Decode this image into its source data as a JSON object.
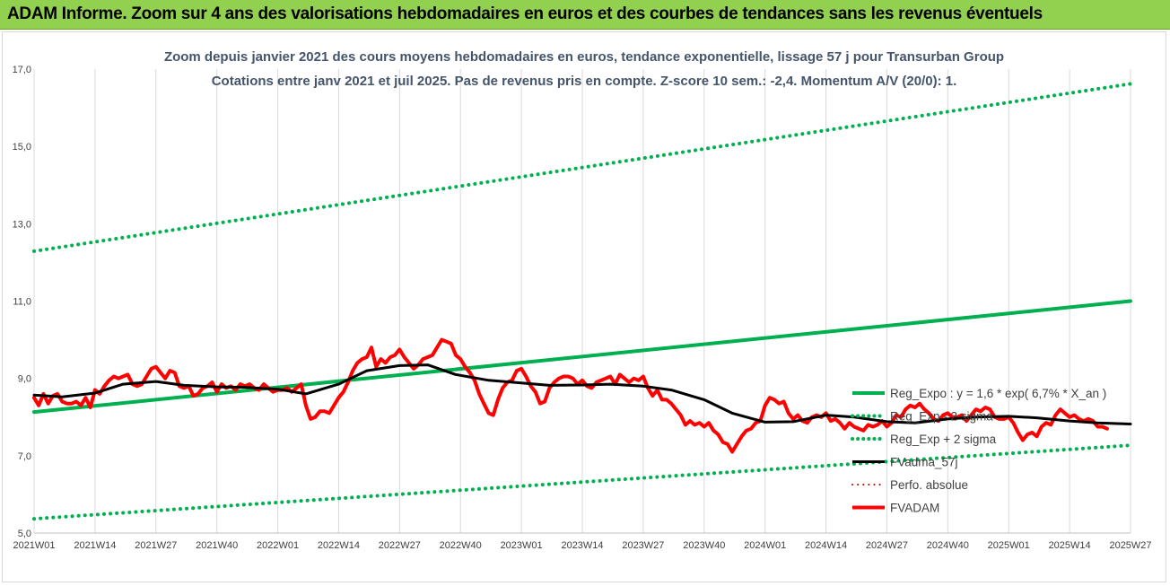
{
  "banner": {
    "title": "ADAM Informe. Zoom sur 4 ans des valorisations hebdomadaires en euros et des courbes de tendances sans les revenus éventuels"
  },
  "colors": {
    "banner_bg": "#92d050",
    "trend": "#00b050",
    "smooth": "#000000",
    "price": "#ff0000",
    "perfo": "#c00000"
  },
  "chart_data": {
    "type": "line",
    "title": "Zoom depuis janvier 2021 des cours moyens hebdomadaires en euros, tendance exponentielle, lissage 57 j pour Transurban Group",
    "subtitle": "Cotations entre janv 2021 et juil 2025. Pas de revenus pris en compte. Z-score 10 sem.: -2,4. Momentum A/V (20/0): 1.",
    "xlabel": "",
    "ylabel": "",
    "ylim": [
      5,
      17
    ],
    "yticks": [
      "5,0",
      "7,0",
      "9,0",
      "11,0",
      "13,0",
      "15,0",
      "17,0"
    ],
    "xticks": [
      "2021W01",
      "2021W14",
      "2021W27",
      "2021W40",
      "2022W01",
      "2022W14",
      "2022W27",
      "2022W40",
      "2023W01",
      "2023W14",
      "2023W27",
      "2023W40",
      "2024W01",
      "2024W14",
      "2024W27",
      "2024W40",
      "2025W01",
      "2025W14",
      "2025W27"
    ],
    "xrange_weeks": [
      0,
      234
    ],
    "grid": "vertical",
    "legend_position": "right",
    "series": [
      {
        "name": "Reg_Expo : y = 1,6 * exp( 6,7% *  X_an )",
        "style": "solid",
        "color": "#00b050",
        "width": 4,
        "points": [
          [
            0,
            8.13
          ],
          [
            234,
            11.0
          ]
        ]
      },
      {
        "name": "Reg_Exp - 2 sigma",
        "style": "dotted",
        "color": "#00b050",
        "width": 4,
        "points": [
          [
            0,
            5.37
          ],
          [
            234,
            7.27
          ]
        ]
      },
      {
        "name": "Reg_Exp + 2 sigma",
        "style": "dotted",
        "color": "#00b050",
        "width": 4,
        "points": [
          [
            0,
            12.29
          ],
          [
            234,
            16.62
          ]
        ]
      },
      {
        "name": "FVadma_57j",
        "style": "solid",
        "color": "#000000",
        "width": 3,
        "points": [
          [
            0,
            8.57
          ],
          [
            6,
            8.52
          ],
          [
            13,
            8.62
          ],
          [
            19,
            8.85
          ],
          [
            26,
            8.92
          ],
          [
            32,
            8.82
          ],
          [
            39,
            8.78
          ],
          [
            45,
            8.77
          ],
          [
            52,
            8.72
          ],
          [
            58,
            8.6
          ],
          [
            65,
            8.85
          ],
          [
            71,
            9.2
          ],
          [
            78,
            9.33
          ],
          [
            84,
            9.35
          ],
          [
            90,
            9.1
          ],
          [
            97,
            8.95
          ],
          [
            104,
            8.88
          ],
          [
            110,
            8.82
          ],
          [
            117,
            8.83
          ],
          [
            123,
            8.85
          ],
          [
            130,
            8.8
          ],
          [
            136,
            8.7
          ],
          [
            143,
            8.45
          ],
          [
            149,
            8.1
          ],
          [
            156,
            7.87
          ],
          [
            162,
            7.88
          ],
          [
            169,
            8.05
          ],
          [
            175,
            8.0
          ],
          [
            182,
            7.88
          ],
          [
            188,
            7.85
          ],
          [
            195,
            7.95
          ],
          [
            201,
            8.0
          ],
          [
            208,
            8.02
          ],
          [
            214,
            7.98
          ],
          [
            221,
            7.9
          ],
          [
            227,
            7.85
          ],
          [
            234,
            7.82
          ]
        ]
      },
      {
        "name": "Perfo. absolue",
        "style": "dotted",
        "color": "#c00000",
        "width": 2,
        "points": []
      },
      {
        "name": "FVADAM",
        "style": "solid",
        "color": "#ff0000",
        "width": 4,
        "points": [
          [
            0,
            8.5
          ],
          [
            1,
            8.3
          ],
          [
            2,
            8.6
          ],
          [
            3,
            8.35
          ],
          [
            4,
            8.55
          ],
          [
            5,
            8.6
          ],
          [
            6,
            8.4
          ],
          [
            7,
            8.35
          ],
          [
            8,
            8.35
          ],
          [
            9,
            8.4
          ],
          [
            10,
            8.3
          ],
          [
            11,
            8.5
          ],
          [
            12,
            8.25
          ],
          [
            13,
            8.7
          ],
          [
            14,
            8.6
          ],
          [
            15,
            8.8
          ],
          [
            16,
            8.95
          ],
          [
            17,
            9.05
          ],
          [
            18,
            9.0
          ],
          [
            19,
            9.05
          ],
          [
            20,
            9.1
          ],
          [
            21,
            8.85
          ],
          [
            22,
            8.8
          ],
          [
            23,
            8.85
          ],
          [
            24,
            9.05
          ],
          [
            25,
            9.25
          ],
          [
            26,
            9.3
          ],
          [
            27,
            9.15
          ],
          [
            28,
            9.0
          ],
          [
            29,
            9.2
          ],
          [
            30,
            9.15
          ],
          [
            31,
            8.8
          ],
          [
            32,
            8.75
          ],
          [
            33,
            8.8
          ],
          [
            34,
            8.55
          ],
          [
            35,
            8.6
          ],
          [
            36,
            8.75
          ],
          [
            37,
            8.8
          ],
          [
            38,
            8.9
          ],
          [
            39,
            8.65
          ],
          [
            40,
            8.85
          ],
          [
            41,
            8.75
          ],
          [
            42,
            8.8
          ],
          [
            43,
            8.7
          ],
          [
            44,
            8.85
          ],
          [
            45,
            8.8
          ],
          [
            46,
            8.85
          ],
          [
            47,
            8.75
          ],
          [
            48,
            8.7
          ],
          [
            49,
            8.85
          ],
          [
            50,
            8.75
          ],
          [
            51,
            8.65
          ],
          [
            52,
            8.7
          ],
          [
            53,
            8.7
          ],
          [
            54,
            8.75
          ],
          [
            55,
            8.65
          ],
          [
            56,
            8.75
          ],
          [
            57,
            8.85
          ],
          [
            58,
            8.3
          ],
          [
            59,
            7.95
          ],
          [
            60,
            8.0
          ],
          [
            61,
            8.15
          ],
          [
            62,
            8.15
          ],
          [
            63,
            8.1
          ],
          [
            64,
            8.3
          ],
          [
            65,
            8.5
          ],
          [
            66,
            8.65
          ],
          [
            67,
            8.9
          ],
          [
            68,
            9.2
          ],
          [
            69,
            9.4
          ],
          [
            70,
            9.5
          ],
          [
            71,
            9.55
          ],
          [
            72,
            9.8
          ],
          [
            73,
            9.3
          ],
          [
            74,
            9.5
          ],
          [
            75,
            9.4
          ],
          [
            76,
            9.55
          ],
          [
            77,
            9.6
          ],
          [
            78,
            9.75
          ],
          [
            79,
            9.55
          ],
          [
            80,
            9.4
          ],
          [
            81,
            9.25
          ],
          [
            82,
            9.35
          ],
          [
            83,
            9.5
          ],
          [
            84,
            9.55
          ],
          [
            85,
            9.6
          ],
          [
            86,
            9.8
          ],
          [
            87,
            10.0
          ],
          [
            88,
            9.95
          ],
          [
            89,
            9.9
          ],
          [
            90,
            9.6
          ],
          [
            91,
            9.5
          ],
          [
            92,
            9.3
          ],
          [
            93,
            9.15
          ],
          [
            94,
            8.95
          ],
          [
            95,
            8.6
          ],
          [
            96,
            8.35
          ],
          [
            97,
            8.1
          ],
          [
            98,
            8.05
          ],
          [
            99,
            8.45
          ],
          [
            100,
            8.75
          ],
          [
            101,
            8.9
          ],
          [
            102,
            8.95
          ],
          [
            103,
            9.2
          ],
          [
            104,
            9.25
          ],
          [
            105,
            9.05
          ],
          [
            106,
            8.8
          ],
          [
            107,
            8.65
          ],
          [
            108,
            8.35
          ],
          [
            109,
            8.4
          ],
          [
            110,
            8.75
          ],
          [
            111,
            8.9
          ],
          [
            112,
            9.0
          ],
          [
            113,
            9.05
          ],
          [
            114,
            9.05
          ],
          [
            115,
            9.0
          ],
          [
            116,
            8.85
          ],
          [
            117,
            8.95
          ],
          [
            118,
            8.8
          ],
          [
            119,
            8.75
          ],
          [
            120,
            8.9
          ],
          [
            121,
            8.95
          ],
          [
            122,
            9.0
          ],
          [
            123,
            9.05
          ],
          [
            124,
            8.85
          ],
          [
            125,
            9.1
          ],
          [
            126,
            9.0
          ],
          [
            127,
            8.9
          ],
          [
            128,
            9.0
          ],
          [
            129,
            8.95
          ],
          [
            130,
            9.05
          ],
          [
            131,
            8.75
          ],
          [
            132,
            8.55
          ],
          [
            133,
            8.7
          ],
          [
            134,
            8.45
          ],
          [
            135,
            8.45
          ],
          [
            136,
            8.35
          ],
          [
            137,
            8.2
          ],
          [
            138,
            8.05
          ],
          [
            139,
            7.8
          ],
          [
            140,
            7.9
          ],
          [
            141,
            7.8
          ],
          [
            142,
            7.85
          ],
          [
            143,
            7.75
          ],
          [
            144,
            7.85
          ],
          [
            145,
            7.65
          ],
          [
            146,
            7.55
          ],
          [
            147,
            7.35
          ],
          [
            148,
            7.3
          ],
          [
            149,
            7.1
          ],
          [
            150,
            7.3
          ],
          [
            151,
            7.5
          ],
          [
            152,
            7.65
          ],
          [
            153,
            7.7
          ],
          [
            154,
            7.85
          ],
          [
            155,
            7.9
          ],
          [
            156,
            8.3
          ],
          [
            157,
            8.5
          ],
          [
            158,
            8.45
          ],
          [
            159,
            8.35
          ],
          [
            160,
            8.4
          ],
          [
            161,
            8.1
          ],
          [
            162,
            7.95
          ],
          [
            163,
            8.05
          ],
          [
            164,
            7.9
          ],
          [
            165,
            7.85
          ],
          [
            166,
            8.0
          ],
          [
            167,
            8.05
          ],
          [
            168,
            8.0
          ],
          [
            169,
            8.1
          ],
          [
            170,
            7.9
          ],
          [
            171,
            7.95
          ],
          [
            172,
            7.85
          ],
          [
            173,
            7.7
          ],
          [
            174,
            7.85
          ],
          [
            175,
            7.75
          ],
          [
            176,
            7.7
          ],
          [
            177,
            7.65
          ],
          [
            178,
            7.8
          ],
          [
            179,
            7.75
          ],
          [
            180,
            7.8
          ],
          [
            181,
            7.9
          ],
          [
            182,
            7.75
          ],
          [
            183,
            7.85
          ],
          [
            184,
            8.05
          ],
          [
            185,
            8.0
          ],
          [
            186,
            8.2
          ],
          [
            187,
            8.3
          ],
          [
            188,
            8.25
          ],
          [
            189,
            8.35
          ],
          [
            190,
            8.2
          ],
          [
            191,
            8.1
          ],
          [
            192,
            7.95
          ],
          [
            193,
            7.9
          ],
          [
            194,
            8.05
          ],
          [
            195,
            8.1
          ],
          [
            196,
            8.0
          ],
          [
            197,
            8.0
          ],
          [
            198,
            8.05
          ],
          [
            199,
            7.9
          ],
          [
            200,
            8.05
          ],
          [
            201,
            8.2
          ],
          [
            202,
            8.15
          ],
          [
            203,
            8.25
          ],
          [
            204,
            8.2
          ],
          [
            205,
            8.0
          ],
          [
            206,
            7.95
          ],
          [
            207,
            7.95
          ],
          [
            208,
            8.0
          ],
          [
            209,
            7.85
          ],
          [
            210,
            7.6
          ],
          [
            211,
            7.4
          ],
          [
            212,
            7.55
          ],
          [
            213,
            7.6
          ],
          [
            214,
            7.5
          ],
          [
            215,
            7.75
          ],
          [
            216,
            7.85
          ],
          [
            217,
            7.8
          ],
          [
            218,
            8.05
          ],
          [
            219,
            8.2
          ],
          [
            220,
            8.1
          ],
          [
            221,
            8.0
          ],
          [
            222,
            8.05
          ],
          [
            223,
            7.95
          ],
          [
            224,
            7.9
          ],
          [
            225,
            7.95
          ],
          [
            226,
            7.9
          ],
          [
            227,
            7.75
          ],
          [
            228,
            7.75
          ],
          [
            229,
            7.7
          ]
        ]
      }
    ]
  }
}
